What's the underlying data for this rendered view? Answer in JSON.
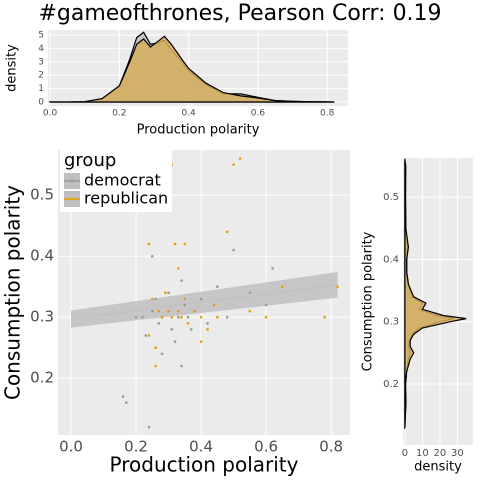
{
  "title": "#gameofthrones, Pearson Corr: 0.19",
  "chart_data": [
    {
      "type": "density",
      "orientation": "vertical",
      "x_label": "Production polarity",
      "y_label": "density",
      "x": [
        0,
        0.05,
        0.1,
        0.15,
        0.2,
        0.23,
        0.25,
        0.27,
        0.29,
        0.31,
        0.33,
        0.35,
        0.38,
        0.4,
        0.45,
        0.5,
        0.55,
        0.6,
        0.65,
        0.7,
        0.75,
        0.82
      ],
      "series": [
        {
          "name": "democrat",
          "color": "#bdbdbd",
          "values": [
            0,
            0,
            0.02,
            0.2,
            1.2,
            3.2,
            4.8,
            5.2,
            4.3,
            4.4,
            4.6,
            3.9,
            3.0,
            2.3,
            1.3,
            0.6,
            0.6,
            0.35,
            0.1,
            0.05,
            0.02,
            0
          ]
        },
        {
          "name": "republican",
          "color": "#d6ae5c",
          "values": [
            0,
            0,
            0.02,
            0.25,
            1.2,
            3.0,
            4.3,
            4.7,
            4.1,
            4.5,
            4.9,
            4.3,
            3.2,
            2.5,
            1.4,
            0.7,
            0.45,
            0.3,
            0.1,
            0.05,
            0.02,
            0
          ]
        }
      ],
      "xlim": [
        -0.006,
        0.86
      ],
      "xticks": [
        {
          "value": 0,
          "label": "0.0"
        },
        0.2,
        0.4,
        0.6,
        0.8
      ],
      "ylim": [
        -0.3,
        5.37
      ],
      "yticks": [
        0,
        1,
        2,
        3,
        4,
        5
      ],
      "grid": true
    },
    {
      "type": "scatter",
      "x_label": "Production polarity",
      "y_label": "Consumption polarity",
      "legend_title": "group",
      "series": [
        {
          "name": "democrat",
          "color": "#999999",
          "x": [
            0.16,
            0.17,
            0.22,
            0.23,
            0.24,
            0.25,
            0.26,
            0.27,
            0.28,
            0.29,
            0.3,
            0.31,
            0.32,
            0.33,
            0.34,
            0.35,
            0.36,
            0.38,
            0.4,
            0.42,
            0.45,
            0.48,
            0.5,
            0.55,
            0.6,
            0.62,
            0.25,
            0.28,
            0.3,
            0.34,
            0.2,
            0.37
          ],
          "values": [
            0.17,
            0.16,
            0.3,
            0.27,
            0.12,
            0.31,
            0.33,
            0.29,
            0.3,
            0.34,
            0.31,
            0.28,
            0.26,
            0.3,
            0.36,
            0.32,
            0.3,
            0.31,
            0.33,
            0.29,
            0.35,
            0.3,
            0.41,
            0.34,
            0.32,
            0.38,
            0.4,
            0.24,
            0.34,
            0.22,
            0.3,
            0.28
          ]
        },
        {
          "name": "republican",
          "color": "#e69f00",
          "x": [
            0.24,
            0.25,
            0.26,
            0.27,
            0.28,
            0.29,
            0.3,
            0.31,
            0.32,
            0.33,
            0.34,
            0.35,
            0.36,
            0.38,
            0.4,
            0.42,
            0.45,
            0.48,
            0.5,
            0.55,
            0.6,
            0.65,
            0.78,
            0.82,
            0.31,
            0.35,
            0.44,
            0.26,
            0.24,
            0.52,
            0.33,
            0.4
          ],
          "values": [
            0.42,
            0.33,
            0.25,
            0.31,
            0.3,
            0.34,
            0.31,
            0.3,
            0.42,
            0.31,
            0.3,
            0.33,
            0.29,
            0.31,
            0.3,
            0.28,
            0.3,
            0.44,
            0.55,
            0.31,
            0.3,
            0.35,
            0.3,
            0.35,
            0.55,
            0.42,
            0.32,
            0.22,
            0.27,
            0.56,
            0.38,
            0.26
          ]
        }
      ],
      "trend": {
        "color": "#bfbfbf",
        "x": [
          0,
          0.82
        ],
        "y": [
          0.297,
          0.353
        ],
        "lower": [
          0.283,
          0.332
        ],
        "upper": [
          0.311,
          0.374
        ]
      },
      "xlim": [
        -0.04,
        0.858
      ],
      "xticks": [
        {
          "value": 0,
          "label": "0.0"
        },
        0.2,
        0.4,
        0.6,
        0.8
      ],
      "ylim": [
        0.107,
        0.574
      ],
      "yticks": [
        0.2,
        0.3,
        0.4,
        0.5
      ],
      "grid": true
    },
    {
      "type": "density",
      "orientation": "horizontal",
      "x_label": "density",
      "y_label": "Consumption polarity",
      "x": [
        0.13,
        0.15,
        0.17,
        0.2,
        0.22,
        0.24,
        0.25,
        0.26,
        0.27,
        0.28,
        0.29,
        0.3,
        0.305,
        0.31,
        0.32,
        0.33,
        0.34,
        0.36,
        0.38,
        0.4,
        0.42,
        0.45,
        0.5,
        0.55,
        0.56
      ],
      "series": [
        {
          "name": "democrat",
          "color": "#bdbdbd",
          "values": [
            0,
            0.3,
            0.6,
            0.4,
            1,
            2,
            3,
            2,
            2.5,
            4,
            8,
            20,
            28,
            18,
            8,
            10,
            4,
            2,
            1,
            1,
            1.5,
            0.5,
            0.3,
            0.2,
            0
          ]
        },
        {
          "name": "republican",
          "color": "#d6ae5c",
          "values": [
            0,
            0.2,
            0.4,
            0.3,
            1,
            3,
            5,
            3,
            3,
            5,
            10,
            26,
            35,
            22,
            10,
            12,
            5,
            2,
            1,
            1,
            2,
            0.5,
            0.4,
            0.5,
            0
          ]
        }
      ],
      "xlim": [
        -1.1,
        38.9
      ],
      "xticks": [
        0,
        10,
        20,
        30
      ],
      "ylim": [
        0.102,
        0.563
      ],
      "yticks": [
        0.2,
        0.3,
        0.4,
        0.5
      ],
      "grid": true
    }
  ]
}
